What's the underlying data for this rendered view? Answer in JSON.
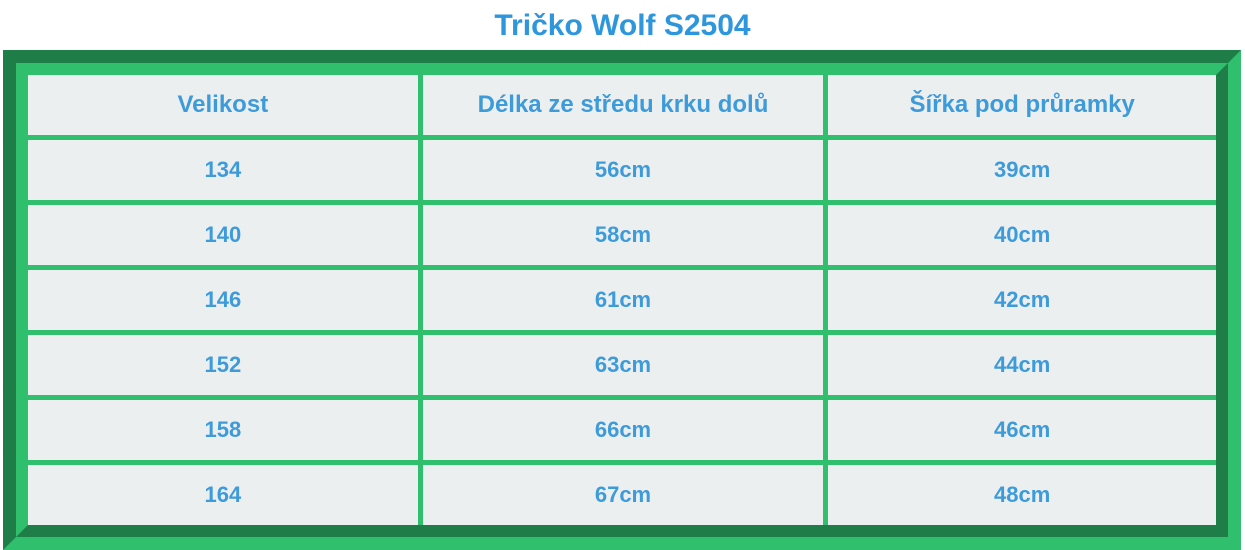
{
  "title": "Tričko Wolf S2504",
  "table": {
    "headers": [
      "Velikost",
      "Délka ze středu krku dolů",
      "Šířka pod průramky"
    ],
    "rows": [
      [
        "134",
        "56cm",
        "39cm"
      ],
      [
        "140",
        "58cm",
        "40cm"
      ],
      [
        "146",
        "61cm",
        "42cm"
      ],
      [
        "152",
        "63cm",
        "44cm"
      ],
      [
        "158",
        "66cm",
        "46cm"
      ],
      [
        "164",
        "67cm",
        "48cm"
      ]
    ]
  },
  "colors": {
    "title_text": "#2D96DD",
    "cell_text": "#3E9BDA",
    "frame_dark_green": "#1F7E48",
    "frame_light_green": "#2FBF6D",
    "cell_background": "#ECEFF0",
    "page_background": "#FFFFFF"
  },
  "chart_data": {
    "type": "table",
    "title": "Tričko Wolf S2504",
    "columns": [
      "Velikost",
      "Délka ze středu krku dolů",
      "Šířka pod průramky"
    ],
    "rows": [
      [
        "134",
        "56cm",
        "39cm"
      ],
      [
        "140",
        "58cm",
        "40cm"
      ],
      [
        "146",
        "61cm",
        "42cm"
      ],
      [
        "152",
        "63cm",
        "44cm"
      ],
      [
        "158",
        "66cm",
        "46cm"
      ],
      [
        "164",
        "67cm",
        "48cm"
      ]
    ],
    "sizes": [
      134,
      140,
      146,
      152,
      158,
      164
    ],
    "length_from_neck_center_cm": [
      56,
      58,
      61,
      63,
      66,
      67
    ],
    "width_under_armholes_cm": [
      39,
      40,
      42,
      44,
      46,
      48
    ],
    "units": "cm"
  }
}
